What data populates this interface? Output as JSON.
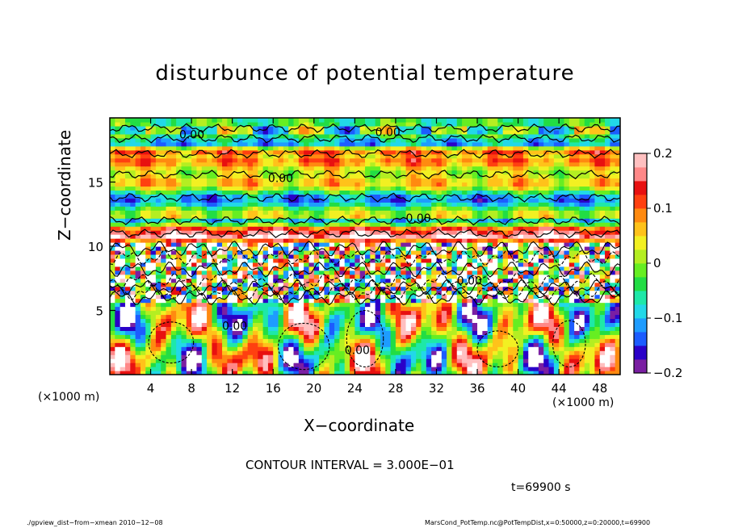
{
  "chart_data": {
    "type": "heatmap",
    "title": "disturbunce of potential temperature",
    "xlabel": "X−coordinate",
    "ylabel": "Z−coordinate",
    "x_unit_left": "(×1000 m)",
    "x_unit_right": "(×1000 m)",
    "xlim": [
      0,
      50
    ],
    "ylim": [
      0,
      20
    ],
    "x_ticks": [
      4,
      8,
      12,
      16,
      20,
      24,
      28,
      32,
      36,
      40,
      44,
      48
    ],
    "x_tick_labels": [
      "4",
      "8",
      "12",
      "16",
      "20",
      "24",
      "28",
      "32",
      "36",
      "40",
      "44",
      "48"
    ],
    "y_ticks": [
      5,
      10,
      15
    ],
    "y_tick_labels": [
      "5",
      "10",
      "15"
    ],
    "colorbar": {
      "range": [
        -0.2,
        0.2
      ],
      "tick_values": [
        0.2,
        0.1,
        0,
        -0.1,
        -0.2
      ],
      "tick_labels": [
        "0.2",
        "0.1",
        "0",
        "−0.1",
        "−0.2"
      ],
      "colors": [
        "#7a1fa2",
        "#2a00c8",
        "#1c5cff",
        "#1e9cff",
        "#22d8e8",
        "#1ee8a8",
        "#22dd44",
        "#66ee22",
        "#b4ee22",
        "#f2f022",
        "#ffc21a",
        "#ff8a10",
        "#ff4010",
        "#e81010",
        "#ff8888",
        "#ffc0c0"
      ]
    },
    "contour_labels": [
      "0.00",
      "0.00",
      "0.00",
      "0.00",
      "0.00",
      "0.00",
      "0.00"
    ],
    "contour_interval_text": "CONTOUR INTERVAL = 3.000E−01",
    "time_text": "t=69900 s",
    "footer_left": "./gpview_dist−from−xmean  2010−12−08",
    "footer_right": "MarsCond_PotTemp.nc@PotTempDist,x=0:50000,z=0:20000,t=69900"
  }
}
